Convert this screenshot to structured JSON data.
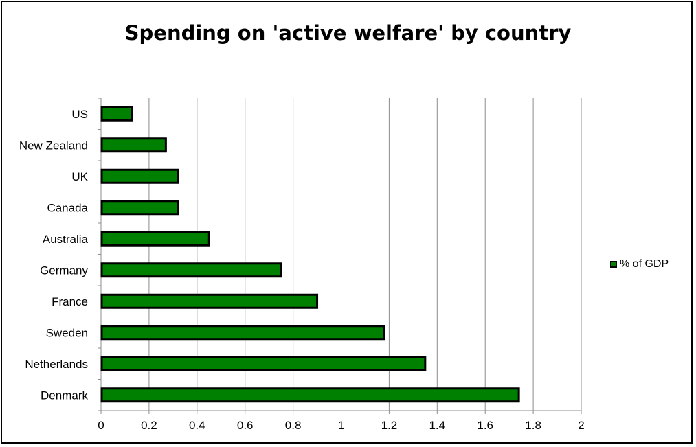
{
  "chart_data": {
    "type": "bar",
    "orientation": "horizontal",
    "title": "Spending on 'active welfare' by country",
    "xlabel": "",
    "ylabel": "",
    "categories": [
      "US",
      "New Zealand",
      "UK",
      "Canada",
      "Australia",
      "Germany",
      "France",
      "Sweden",
      "Netherlands",
      "Denmark"
    ],
    "series": [
      {
        "name": "% of GDP",
        "values": [
          0.13,
          0.27,
          0.32,
          0.32,
          0.45,
          0.75,
          0.9,
          1.18,
          1.35,
          1.74
        ],
        "color": "#008000"
      }
    ],
    "xlim": [
      0,
      2
    ],
    "xticks": [
      "0",
      "0.2",
      "0.4",
      "0.6",
      "0.8",
      "1",
      "1.2",
      "1.4",
      "1.6",
      "1.8",
      "2"
    ],
    "grid": "vertical",
    "legend_position": "right"
  }
}
